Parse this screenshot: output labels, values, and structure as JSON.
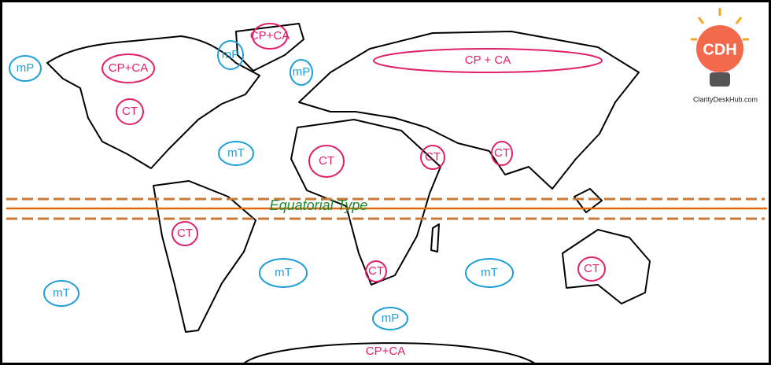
{
  "air_masses": [
    {
      "label": "mP",
      "color": "#1e9fd8"
    },
    {
      "label": "CP+CA",
      "color": "#e0206a"
    },
    {
      "label": "CT",
      "color": "#e0206a"
    },
    {
      "label": "mP",
      "color": "#1e9fd8"
    },
    {
      "label": "CP+CA",
      "color": "#e0206a"
    },
    {
      "label": "mP",
      "color": "#1e9fd8"
    },
    {
      "label": "CP + CA",
      "color": "#e0206a"
    },
    {
      "label": "mT",
      "color": "#1e9fd8"
    },
    {
      "label": "CT",
      "color": "#e0206a"
    },
    {
      "label": "CT",
      "color": "#e0206a"
    },
    {
      "label": "CT",
      "color": "#e0206a"
    },
    {
      "label": "CT",
      "color": "#e0206a"
    },
    {
      "label": "mT",
      "color": "#1e9fd8"
    },
    {
      "label": "mT",
      "color": "#1e9fd8"
    },
    {
      "label": "CT",
      "color": "#e0206a"
    },
    {
      "label": "mT",
      "color": "#1e9fd8"
    },
    {
      "label": "CT",
      "color": "#e0206a"
    },
    {
      "label": "mP",
      "color": "#1e9fd8"
    },
    {
      "label": "CP+CA",
      "color": "#e0206a"
    }
  ],
  "equator": {
    "label": "Equatorial Type",
    "color": "#1e8a2e"
  },
  "logo": {
    "title": "CDH",
    "url": "ClarityDeskHub.com"
  }
}
